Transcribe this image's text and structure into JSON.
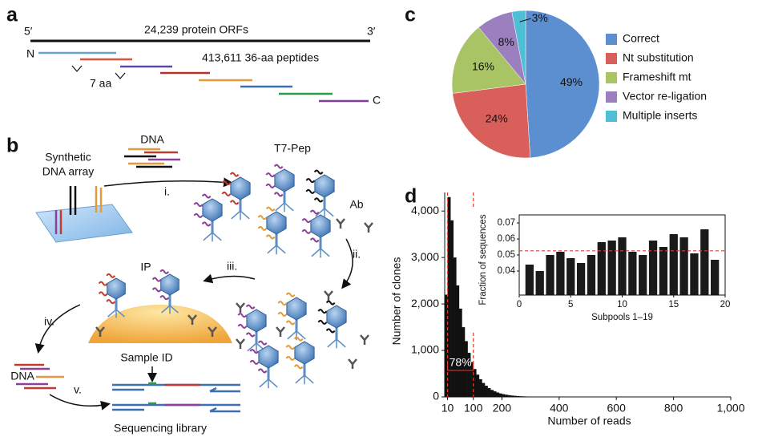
{
  "panel_labels": [
    "a",
    "b",
    "c",
    "d"
  ],
  "panel_a": {
    "five_prime": "5′",
    "three_prime": "3′",
    "orfs": "24,239 protein ORFs",
    "n_term": "N",
    "peptides": "413,611 36-aa peptides",
    "overlap": "7 aa",
    "c_term": "C"
  },
  "panel_b": {
    "array": [
      "Synthetic",
      "DNA array"
    ],
    "dna_top": "DNA",
    "step_i": "i.",
    "phage": "T7-Pep",
    "antibody": "Ab",
    "step_ii": "ii.",
    "step_iii": "iii.",
    "ip": "IP",
    "step_iv": "iv.",
    "dna_bottom": "DNA",
    "step_v": "v.",
    "sample_id": "Sample ID",
    "library": "Sequencing library"
  },
  "chart_data": [
    {
      "type": "pie",
      "categories": [
        "Correct",
        "Nt substitution",
        "Frameshift mt",
        "Vector re-ligation",
        "Multiple inserts"
      ],
      "values": [
        49,
        24,
        16,
        8,
        3
      ],
      "value_labels": [
        "49%",
        "24%",
        "16%",
        "8%",
        "3%"
      ],
      "colors": [
        "#5b8fcf",
        "#d9605a",
        "#a8c464",
        "#9b7fbf",
        "#4fbfd6"
      ],
      "legend": "right"
    },
    {
      "type": "histogram",
      "x_label": "Number of reads",
      "y_label": "Number of clones",
      "bins": [
        0,
        10,
        20,
        30,
        40,
        50,
        60,
        70,
        80,
        90,
        100,
        110,
        120,
        130,
        140,
        150,
        160,
        170,
        180,
        190,
        200,
        210,
        220,
        230,
        240,
        250,
        260,
        270,
        280,
        290,
        300,
        310,
        320,
        330,
        340,
        350,
        360,
        370,
        380,
        390,
        400
      ],
      "values": [
        2200,
        4300,
        3800,
        3000,
        2400,
        1900,
        1500,
        1200,
        950,
        750,
        600,
        480,
        380,
        300,
        240,
        190,
        150,
        120,
        95,
        75,
        60,
        48,
        38,
        30,
        24,
        19,
        15,
        12,
        10,
        8,
        7,
        6,
        5,
        4,
        4,
        3,
        3,
        2,
        2,
        2
      ],
      "color": "#111111",
      "xlim": [
        0,
        1000
      ],
      "xticks": [
        10,
        100,
        200,
        400,
        600,
        800,
        {
          "value": 1000,
          "label": "1,000"
        }
      ],
      "ylim": [
        0,
        4400
      ],
      "yticks": [
        0,
        {
          "value": 1000,
          "label": "1,000"
        },
        {
          "value": 2000,
          "label": "2,000"
        },
        {
          "value": 3000,
          "label": "3,000"
        },
        {
          "value": 4000,
          "label": "4,000"
        }
      ],
      "vlines": [
        10,
        100
      ],
      "vline_color": "#e03c31",
      "annotation": "78%"
    },
    {
      "type": "bar",
      "x_label": "Subpools 1–19",
      "y_label": "Fraction of sequences",
      "x": [
        1,
        2,
        3,
        4,
        5,
        6,
        7,
        8,
        9,
        10,
        11,
        12,
        13,
        14,
        15,
        16,
        17,
        18,
        19
      ],
      "values": [
        0.044,
        0.04,
        0.05,
        0.052,
        0.048,
        0.045,
        0.05,
        0.058,
        0.059,
        0.061,
        0.052,
        0.05,
        0.059,
        0.055,
        0.063,
        0.061,
        0.051,
        0.066,
        0.047
      ],
      "color": "#1a1a1a",
      "xlim": [
        0,
        20
      ],
      "xticks": [
        0,
        5,
        10,
        15,
        20
      ],
      "ylim": [
        0.025,
        0.075
      ],
      "yticks": [
        0.04,
        0.05,
        0.06,
        0.07
      ],
      "hline": 0.0526,
      "hline_color": "#e03c31"
    }
  ]
}
